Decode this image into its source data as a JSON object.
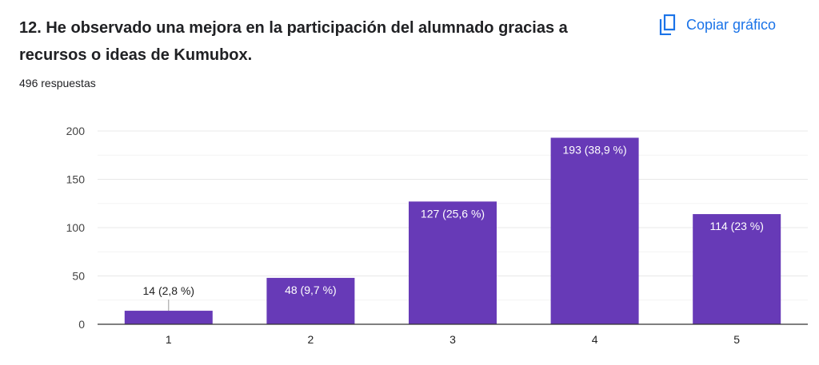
{
  "header": {
    "title": "12. He observado una mejora en la participación del alumnado gracias a recursos o ideas de Kumubox.",
    "responses": "496 respuestas",
    "copy_label": "Copiar gráfico",
    "accent": "#1a73e8"
  },
  "chart_data": {
    "type": "bar",
    "categories": [
      "1",
      "2",
      "3",
      "4",
      "5"
    ],
    "values": [
      14,
      48,
      127,
      193,
      114
    ],
    "data_labels": [
      "14 (2,8 %)",
      "48 (9,7 %)",
      "127 (25,6 %)",
      "193 (38,9 %)",
      "114 (23 %)"
    ],
    "ylim": [
      0,
      200
    ],
    "yticks": [
      0,
      50,
      100,
      150,
      200
    ],
    "grid": true,
    "bar_color": "#673ab7"
  }
}
